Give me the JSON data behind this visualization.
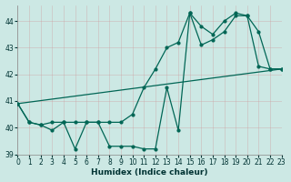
{
  "xlabel": "Humidex (Indice chaleur)",
  "ylabel": "",
  "background_color": "#cce8e4",
  "grid_color": "#b0c8c4",
  "line_color": "#006655",
  "xlim": [
    0,
    23
  ],
  "ylim": [
    39,
    44.6
  ],
  "yticks": [
    39,
    40,
    41,
    42,
    43,
    44
  ],
  "xticks": [
    0,
    1,
    2,
    3,
    4,
    5,
    6,
    7,
    8,
    9,
    10,
    11,
    12,
    13,
    14,
    15,
    16,
    17,
    18,
    19,
    20,
    21,
    22,
    23
  ],
  "series1_x": [
    0,
    1,
    2,
    3,
    4,
    5,
    6,
    7,
    8,
    9,
    10,
    11,
    12,
    13,
    14,
    15,
    16,
    17,
    18,
    19,
    20,
    21,
    22,
    23
  ],
  "series1_y": [
    40.9,
    40.2,
    40.1,
    39.9,
    40.2,
    39.2,
    40.2,
    40.2,
    39.3,
    39.3,
    39.3,
    39.2,
    39.2,
    41.5,
    39.9,
    44.3,
    43.1,
    43.3,
    43.6,
    44.2,
    44.2,
    43.6,
    42.2,
    42.2
  ],
  "series2_x": [
    0,
    1,
    2,
    3,
    4,
    5,
    6,
    7,
    8,
    9,
    10,
    11,
    12,
    13,
    14,
    15,
    16,
    17,
    18,
    19,
    20,
    21,
    22,
    23
  ],
  "series2_y": [
    40.9,
    40.2,
    40.1,
    40.2,
    40.2,
    40.2,
    40.2,
    40.2,
    40.2,
    40.2,
    40.5,
    41.5,
    42.2,
    43.0,
    43.2,
    44.3,
    43.8,
    43.5,
    44.0,
    44.3,
    44.2,
    42.3,
    42.2,
    42.2
  ],
  "series3_x": [
    0,
    23
  ],
  "series3_y": [
    40.9,
    42.2
  ]
}
